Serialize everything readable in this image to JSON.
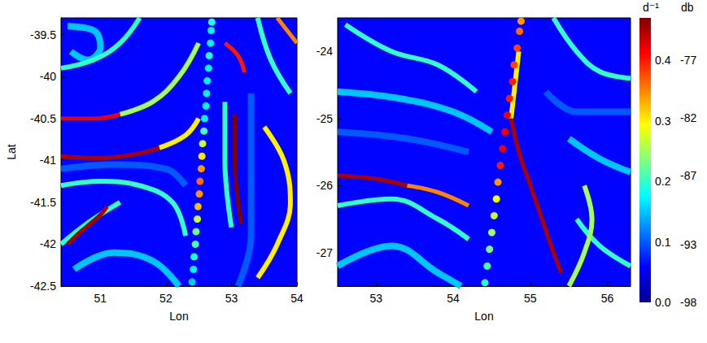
{
  "chart_data": {
    "type": "ridge_map",
    "panels": [
      {
        "xlabel": "Lon",
        "ylabel": "Lat",
        "xlim": [
          50.4,
          54
        ],
        "ylim": [
          -42.5,
          -39.3
        ],
        "xticks": [
          51,
          52,
          53,
          54
        ],
        "yticks": [
          -42.5,
          -42,
          -41.5,
          -41,
          -40.5,
          -40,
          -39.5
        ],
        "background": 0.06,
        "ridges": [
          {
            "value": 0.1,
            "points": [
              [
                50.4,
                -41.1
              ],
              [
                51.2,
                -41.05
              ],
              [
                52.0,
                -41.1
              ],
              [
                52.3,
                -41.3
              ]
            ]
          },
          {
            "value": 0.1,
            "points": [
              [
                53.3,
                -40.2
              ],
              [
                53.3,
                -41.0
              ],
              [
                53.3,
                -41.9
              ],
              [
                53.1,
                -42.5
              ]
            ]
          },
          {
            "value": 0.15,
            "points": [
              [
                50.5,
                -39.4
              ],
              [
                50.9,
                -39.45
              ],
              [
                51.0,
                -39.65
              ],
              [
                50.8,
                -39.8
              ],
              [
                50.55,
                -39.7
              ]
            ]
          },
          {
            "value": 0.15,
            "points": [
              [
                50.6,
                -42.3
              ],
              [
                51.2,
                -42.1
              ],
              [
                51.8,
                -42.2
              ],
              [
                52.2,
                -42.5
              ]
            ]
          },
          {
            "value": 0.2,
            "points": [
              [
                50.4,
                -39.9
              ],
              [
                50.9,
                -39.8
              ],
              [
                51.3,
                -39.6
              ],
              [
                51.6,
                -39.3
              ]
            ]
          },
          {
            "value": 0.2,
            "points": [
              [
                50.4,
                -41.3
              ],
              [
                51.0,
                -41.25
              ],
              [
                51.6,
                -41.3
              ],
              [
                52.1,
                -41.5
              ],
              [
                52.3,
                -41.9
              ]
            ]
          },
          {
            "value": 0.2,
            "points": [
              [
                50.4,
                -42.0
              ],
              [
                50.8,
                -41.75
              ],
              [
                51.3,
                -41.5
              ]
            ]
          },
          {
            "value": 0.2,
            "points": [
              [
                52.9,
                -40.3
              ],
              [
                52.9,
                -41.0
              ],
              [
                53.0,
                -41.8
              ]
            ]
          },
          {
            "value": 0.2,
            "points": [
              [
                53.4,
                -39.3
              ],
              [
                53.6,
                -39.8
              ],
              [
                53.9,
                -40.2
              ]
            ]
          },
          {
            "value": 0.25,
            "points": [
              [
                51.3,
                -40.45
              ],
              [
                51.8,
                -40.3
              ],
              [
                52.2,
                -40.0
              ],
              [
                52.5,
                -39.6
              ]
            ]
          },
          {
            "value": 0.3,
            "points": [
              [
                51.9,
                -40.85
              ],
              [
                52.3,
                -40.7
              ],
              [
                52.5,
                -40.5
              ]
            ]
          },
          {
            "value": 0.3,
            "points": [
              [
                53.5,
                -40.6
              ],
              [
                53.8,
                -41.0
              ],
              [
                53.9,
                -41.5
              ],
              [
                53.7,
                -42.0
              ],
              [
                53.4,
                -42.4
              ]
            ]
          },
          {
            "value": 0.35,
            "points": [
              [
                53.7,
                -39.3
              ],
              [
                54.0,
                -39.6
              ]
            ]
          },
          {
            "value": 0.4,
            "points": [
              [
                52.9,
                -39.6
              ],
              [
                53.1,
                -39.75
              ],
              [
                53.2,
                -39.95
              ]
            ]
          },
          {
            "value": 0.42,
            "points": [
              [
                50.4,
                -40.5
              ],
              [
                50.9,
                -40.5
              ],
              [
                51.3,
                -40.45
              ]
            ]
          },
          {
            "value": 0.45,
            "points": [
              [
                50.4,
                -40.95
              ],
              [
                51.0,
                -40.97
              ],
              [
                51.5,
                -40.93
              ],
              [
                51.9,
                -40.85
              ]
            ]
          },
          {
            "value": 0.45,
            "points": [
              [
                51.1,
                -41.55
              ],
              [
                51.0,
                -41.65
              ],
              [
                50.7,
                -41.85
              ],
              [
                50.5,
                -42.0
              ]
            ]
          },
          {
            "value": 0.47,
            "points": [
              [
                53.05,
                -40.45
              ],
              [
                53.05,
                -41.0
              ],
              [
                53.1,
                -41.5
              ],
              [
                53.15,
                -41.75
              ]
            ]
          }
        ],
        "track": [
          [
            52.4,
            -42.45,
            -90
          ],
          [
            52.42,
            -42.3,
            -89
          ],
          [
            52.43,
            -42.15,
            -88
          ],
          [
            52.45,
            -42.0,
            -87
          ],
          [
            52.46,
            -41.85,
            -86
          ],
          [
            52.48,
            -41.7,
            -84
          ],
          [
            52.49,
            -41.55,
            -81
          ],
          [
            52.51,
            -41.4,
            -80
          ],
          [
            52.52,
            -41.25,
            -79
          ],
          [
            52.54,
            -41.1,
            -80
          ],
          [
            52.55,
            -40.95,
            -82
          ],
          [
            52.56,
            -40.8,
            -84
          ],
          [
            52.58,
            -40.65,
            -87
          ],
          [
            52.59,
            -40.5,
            -89
          ],
          [
            52.61,
            -40.35,
            -89
          ],
          [
            52.62,
            -40.2,
            -89
          ],
          [
            52.63,
            -40.05,
            -89
          ],
          [
            52.65,
            -39.9,
            -89
          ],
          [
            52.66,
            -39.75,
            -88
          ],
          [
            52.68,
            -39.6,
            -89
          ],
          [
            52.69,
            -39.45,
            -89
          ],
          [
            52.7,
            -39.35,
            -88
          ]
        ]
      },
      {
        "xlabel": "Lon",
        "xlim": [
          52.5,
          56.3
        ],
        "ylim": [
          -27.5,
          -23.5
        ],
        "xticks": [
          53,
          54,
          55,
          56
        ],
        "yticks": [
          -27,
          -26,
          -25,
          -24
        ],
        "background": 0.06,
        "ridges": [
          {
            "value": 0.1,
            "points": [
              [
                52.5,
                -25.2
              ],
              [
                53.4,
                -25.3
              ],
              [
                54.2,
                -25.5
              ]
            ]
          },
          {
            "value": 0.1,
            "points": [
              [
                55.2,
                -24.6
              ],
              [
                55.6,
                -24.9
              ],
              [
                56.3,
                -24.9
              ]
            ]
          },
          {
            "value": 0.15,
            "points": [
              [
                52.5,
                -24.6
              ],
              [
                53.3,
                -24.7
              ],
              [
                54.0,
                -24.9
              ],
              [
                54.5,
                -25.2
              ]
            ]
          },
          {
            "value": 0.15,
            "points": [
              [
                52.5,
                -27.2
              ],
              [
                53.2,
                -26.9
              ],
              [
                53.8,
                -27.3
              ],
              [
                54.1,
                -27.5
              ]
            ]
          },
          {
            "value": 0.15,
            "points": [
              [
                55.5,
                -25.3
              ],
              [
                55.9,
                -25.6
              ],
              [
                56.3,
                -25.8
              ]
            ]
          },
          {
            "value": 0.2,
            "points": [
              [
                52.5,
                -26.3
              ],
              [
                53.2,
                -26.2
              ],
              [
                53.8,
                -26.5
              ],
              [
                54.2,
                -26.8
              ]
            ]
          },
          {
            "value": 0.2,
            "points": [
              [
                52.6,
                -23.6
              ],
              [
                53.2,
                -24.0
              ],
              [
                53.8,
                -24.2
              ],
              [
                54.3,
                -24.6
              ]
            ]
          },
          {
            "value": 0.2,
            "points": [
              [
                55.3,
                -23.5
              ],
              [
                55.6,
                -24.0
              ],
              [
                55.9,
                -24.3
              ],
              [
                56.3,
                -24.4
              ]
            ]
          },
          {
            "value": 0.2,
            "points": [
              [
                55.6,
                -26.5
              ],
              [
                55.9,
                -26.9
              ],
              [
                56.3,
                -27.2
              ]
            ]
          },
          {
            "value": 0.25,
            "points": [
              [
                55.7,
                -26.0
              ],
              [
                55.8,
                -26.5
              ],
              [
                55.7,
                -27.0
              ],
              [
                55.5,
                -27.5
              ]
            ]
          },
          {
            "value": 0.3,
            "points": [
              [
                54.75,
                -25.0
              ],
              [
                54.8,
                -24.5
              ],
              [
                54.85,
                -24.0
              ]
            ]
          },
          {
            "value": 0.35,
            "points": [
              [
                53.4,
                -26.0
              ],
              [
                53.8,
                -26.1
              ],
              [
                54.2,
                -26.3
              ]
            ]
          },
          {
            "value": 0.45,
            "points": [
              [
                52.5,
                -25.85
              ],
              [
                53.0,
                -25.9
              ],
              [
                53.4,
                -26.0
              ]
            ]
          },
          {
            "value": 0.45,
            "points": [
              [
                54.75,
                -25.0
              ],
              [
                54.85,
                -25.5
              ],
              [
                55.0,
                -26.0
              ],
              [
                55.15,
                -26.5
              ],
              [
                55.3,
                -27.0
              ],
              [
                55.4,
                -27.3
              ]
            ]
          }
        ],
        "track": [
          [
            54.41,
            -27.45,
            -88
          ],
          [
            54.44,
            -27.2,
            -87
          ],
          [
            54.47,
            -26.95,
            -86
          ],
          [
            54.5,
            -26.7,
            -85
          ],
          [
            54.53,
            -26.45,
            -84
          ],
          [
            54.56,
            -26.2,
            -83
          ],
          [
            54.58,
            -25.95,
            -80
          ],
          [
            54.61,
            -25.7,
            -77
          ],
          [
            54.64,
            -25.45,
            -76
          ],
          [
            54.67,
            -25.2,
            -76
          ],
          [
            54.7,
            -24.95,
            -76
          ],
          [
            54.73,
            -24.7,
            -77
          ],
          [
            54.77,
            -24.45,
            -77
          ],
          [
            54.79,
            -24.2,
            -78
          ],
          [
            54.83,
            -23.95,
            -78
          ],
          [
            54.86,
            -23.7,
            -79
          ],
          [
            54.88,
            -23.55,
            -80
          ]
        ]
      }
    ],
    "colorbar": {
      "label": "d⁻¹",
      "lim": [
        0,
        0.47
      ],
      "ticks": [
        {
          "value": 0,
          "label": "0.0"
        },
        0.1,
        0.2,
        0.3,
        0.4
      ],
      "db_label": "db",
      "db_lim": [
        -98,
        -73.3
      ],
      "db_ticks": [
        -98,
        -93,
        -87,
        -82,
        -77
      ]
    }
  }
}
